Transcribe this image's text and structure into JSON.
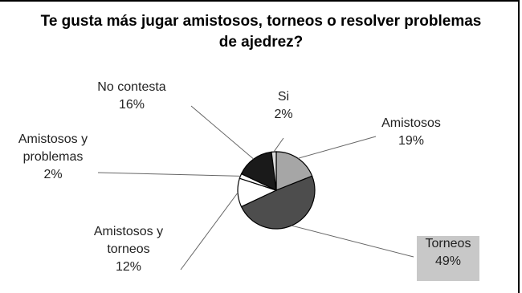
{
  "chart_data": {
    "type": "pie",
    "title_lines": [
      "Te gusta más jugar amistosos, torneos o resolver problemas",
      "de ajedrez?"
    ],
    "slices": [
      {
        "label_lines": [
          "Amistosos"
        ],
        "value_label": "19%",
        "value": 19,
        "color": "#a6a6a6"
      },
      {
        "label_lines": [
          "Torneos"
        ],
        "value_label": "49%",
        "value": 49,
        "color": "#4d4d4d",
        "highlight": true
      },
      {
        "label_lines": [
          "Amistosos y",
          "torneos"
        ],
        "value_label": "12%",
        "value": 12,
        "color": "#ffffff"
      },
      {
        "label_lines": [
          "Amistosos y",
          "problemas"
        ],
        "value_label": "2%",
        "value": 2,
        "color": "#ffffff"
      },
      {
        "label_lines": [
          "No contesta"
        ],
        "value_label": "16%",
        "value": 16,
        "color": "#1a1a1a"
      },
      {
        "label_lines": [
          "Si"
        ],
        "value_label": "2%",
        "value": 2,
        "color": "#d9d9d9"
      }
    ],
    "label_box_color": "#c8c8c8"
  }
}
